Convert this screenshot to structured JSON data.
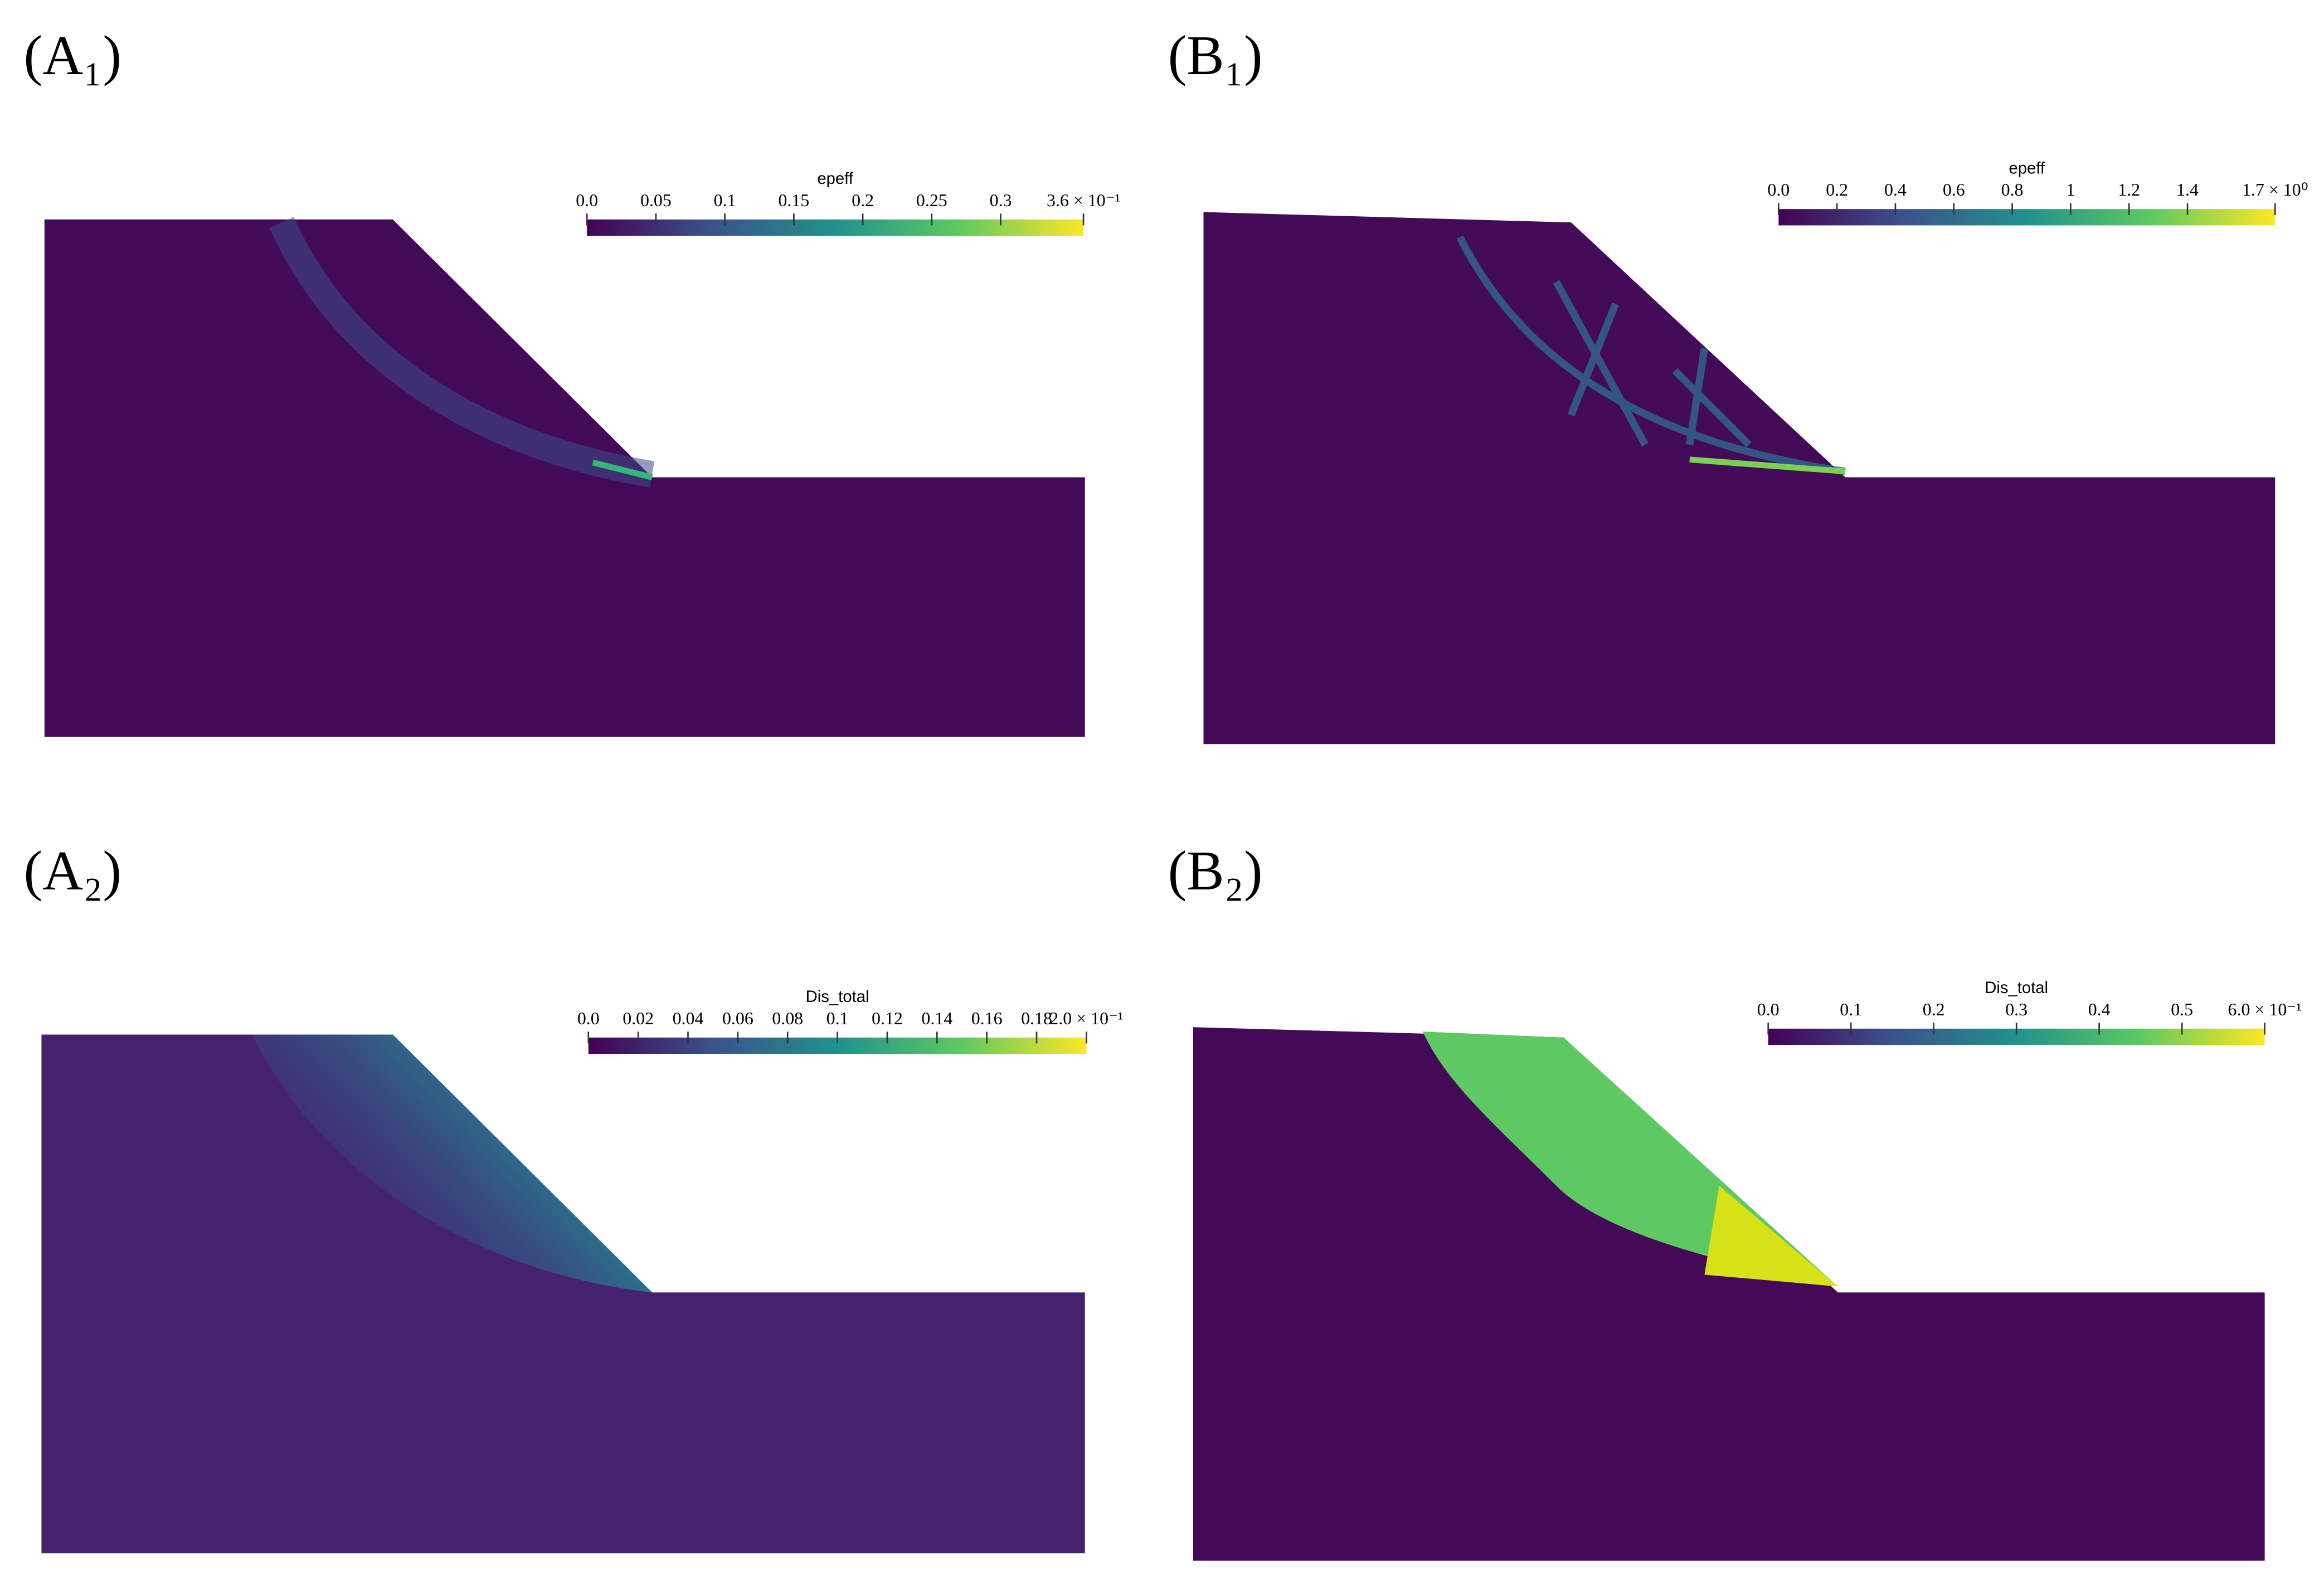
{
  "panels": [
    {
      "label": "(A₁)",
      "colorbar": {
        "title": "epeff",
        "lim": [
          0,
          0.36
        ],
        "ticks": [
          {
            "value": 0,
            "label": "0.0"
          },
          0.05,
          0.1,
          0.15,
          0.2,
          0.25,
          0.3,
          {
            "value": 0.36,
            "label": "3.6 × 10⁻¹"
          }
        ]
      }
    },
    {
      "label": "(B₁)",
      "colorbar": {
        "title": "epeff",
        "lim": [
          0,
          1.7
        ],
        "ticks": [
          {
            "value": 0,
            "label": "0.0"
          },
          0.2,
          0.4,
          0.6,
          0.8,
          1,
          1.2,
          1.4,
          {
            "value": 1.7,
            "label": "1.7 × 10⁰"
          }
        ]
      }
    },
    {
      "label": "(A₂)",
      "colorbar": {
        "title": "Dis_total",
        "lim": [
          0,
          0.2
        ],
        "ticks": [
          {
            "value": 0,
            "label": "0.0"
          },
          0.02,
          0.04,
          0.06,
          0.08,
          0.1,
          0.12,
          0.14,
          0.16,
          0.18,
          {
            "value": 0.2,
            "label": "2.0 × 10⁻¹"
          }
        ]
      }
    },
    {
      "label": "(B₂)",
      "colorbar": {
        "title": "Dis_total",
        "lim": [
          0,
          0.6
        ],
        "ticks": [
          {
            "value": 0,
            "label": "0.0"
          },
          0.1,
          0.2,
          0.3,
          0.4,
          0.5,
          {
            "value": 0.6,
            "label": "6.0 × 10⁻¹"
          }
        ]
      }
    }
  ]
}
